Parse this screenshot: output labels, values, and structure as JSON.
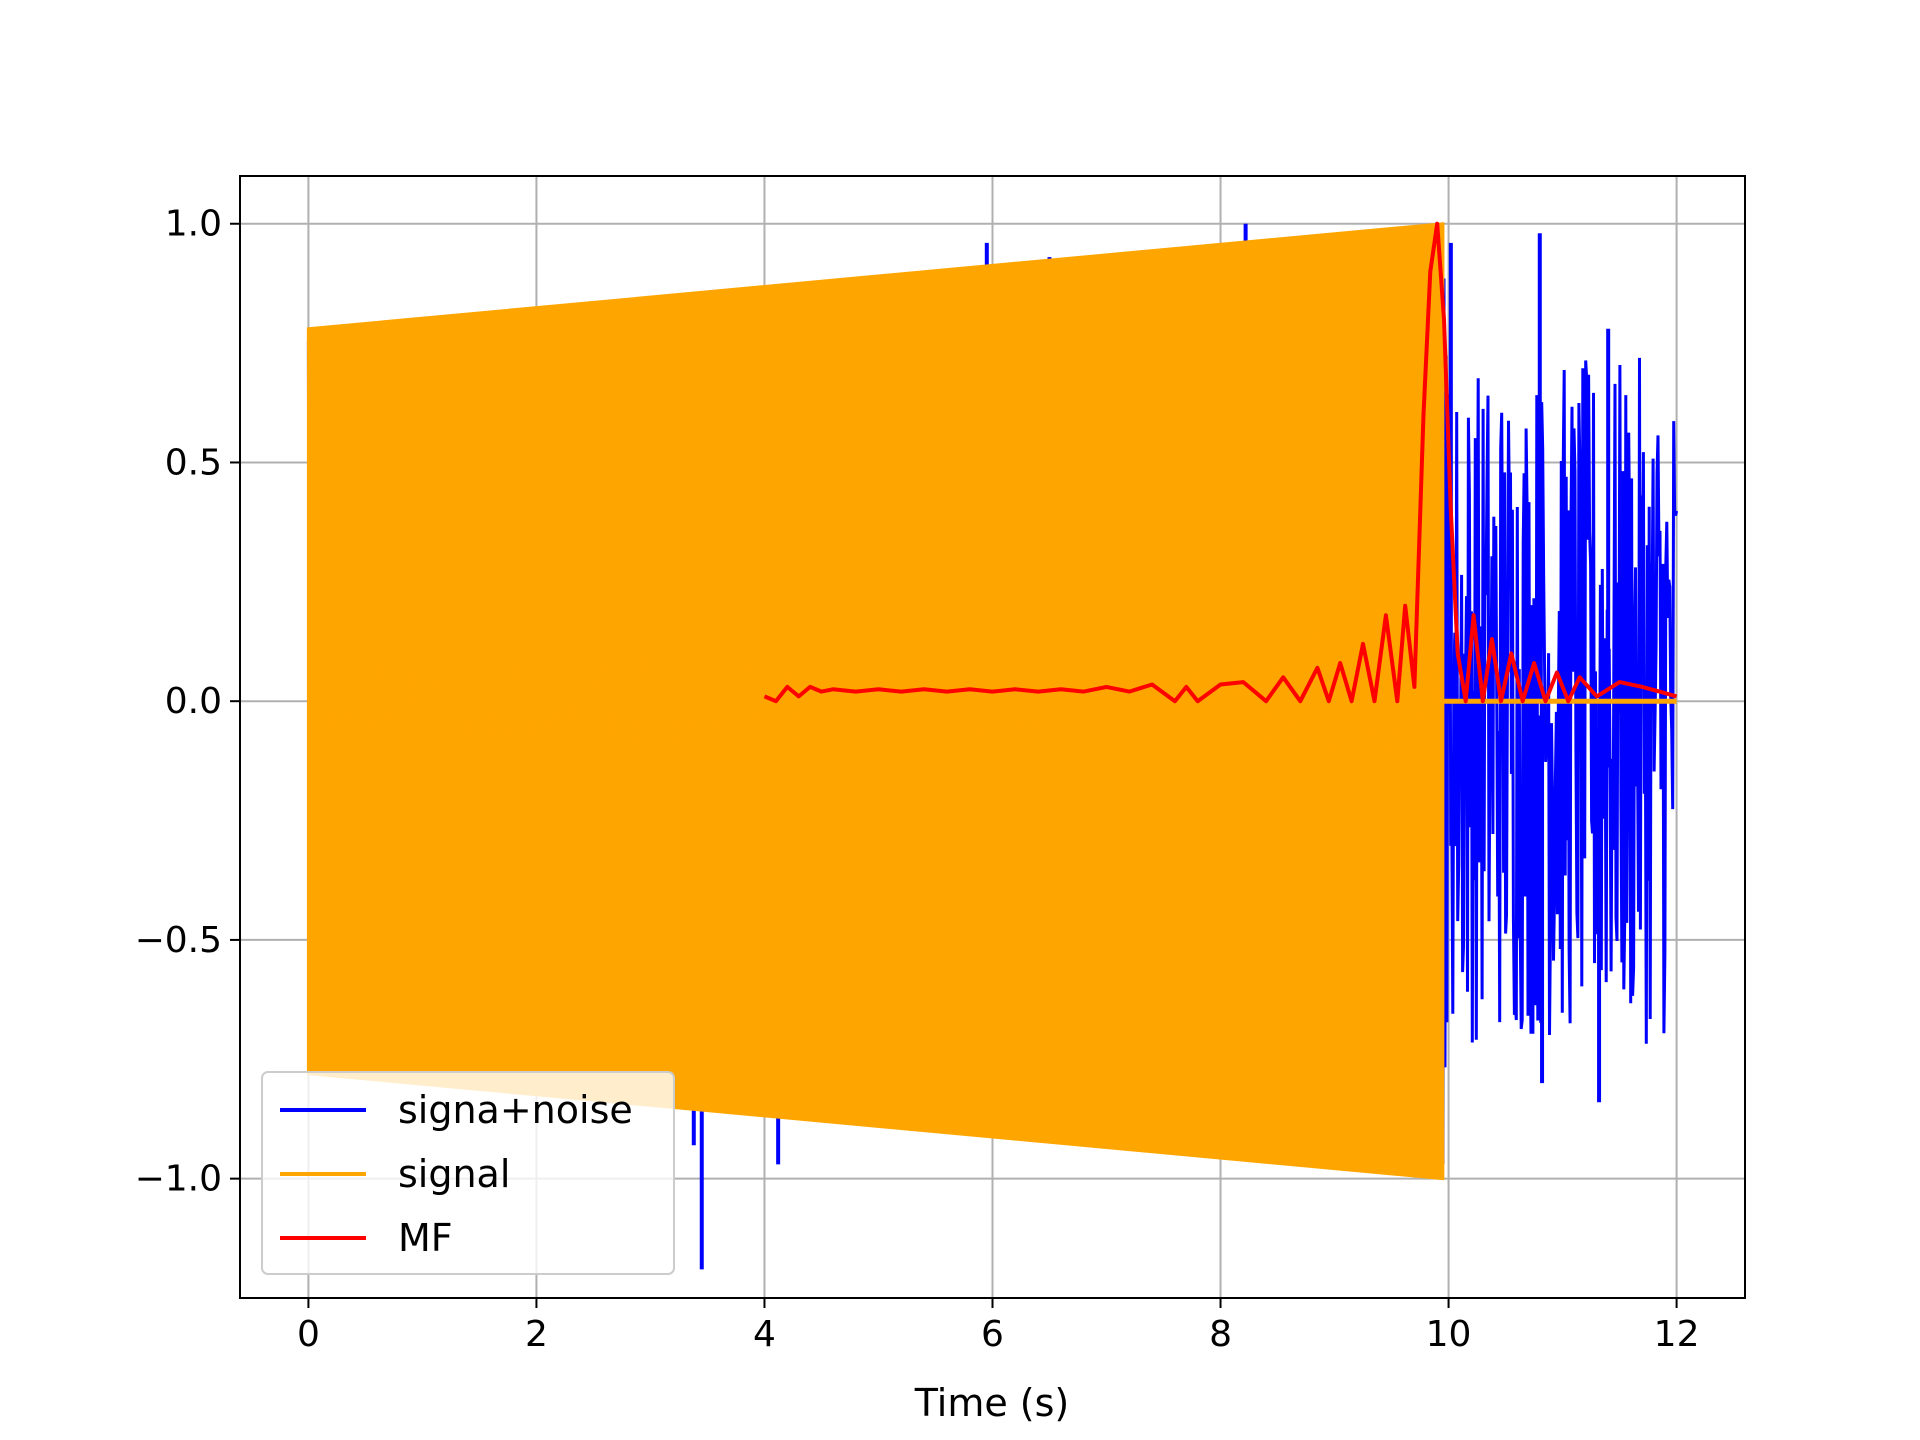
{
  "chart_data": {
    "type": "line",
    "title": "",
    "xlabel": "Time (s)",
    "ylabel": "",
    "xlim": [
      -0.6,
      12.6
    ],
    "ylim": [
      -1.25,
      1.1
    ],
    "grid": true,
    "legend_position": "lower-left",
    "x_ticks": [
      0,
      2,
      4,
      6,
      8,
      10,
      12
    ],
    "x_tick_labels": [
      "0",
      "2",
      "4",
      "6",
      "8",
      "10",
      "12"
    ],
    "y_ticks": [
      1.0,
      0.5,
      0.0,
      -0.5,
      -1.0
    ],
    "y_tick_labels": [
      "1.0",
      "0.5",
      "0.0",
      "−0.5",
      "−1.0"
    ],
    "series": [
      {
        "name": "signa+noise",
        "color": "#0000ff",
        "description": "received signal plus noise, 0 to 12 s",
        "envelope": {
          "x": [
            0,
            9.95,
            10,
            12
          ],
          "upper": [
            0.78,
            1.0,
            0.6,
            0.6
          ],
          "lower": [
            -0.78,
            -1.0,
            -0.6,
            -0.6
          ]
        },
        "spikes": [
          {
            "x": 3.45,
            "y": -1.19
          },
          {
            "x": 3.38,
            "y": -0.93
          },
          {
            "x": 4.12,
            "y": -0.97
          },
          {
            "x": 5.95,
            "y": 0.96
          },
          {
            "x": 6.5,
            "y": 0.93
          },
          {
            "x": 8.22,
            "y": 1.0
          },
          {
            "x": 10.02,
            "y": 0.96
          },
          {
            "x": 10.8,
            "y": 0.98
          },
          {
            "x": 11.32,
            "y": -0.84
          },
          {
            "x": 10.82,
            "y": -0.8
          },
          {
            "x": 11.4,
            "y": 0.78
          }
        ]
      },
      {
        "name": "signal",
        "color": "#ffa500",
        "description": "chirp with linearly rising amplitude from 0.78 at t=0 to 1.0 at t=9.95, then zero until t=12",
        "amplitude_start": 0.78,
        "amplitude_end": 1.0,
        "t_start": 0,
        "t_end": 9.95,
        "x_end": 12,
        "after_value": 0.0
      },
      {
        "name": "MF",
        "color": "#ff0000",
        "description": "matched filter output",
        "x": [
          4.0,
          4.1,
          4.2,
          4.3,
          4.4,
          4.5,
          4.6,
          4.8,
          5.0,
          5.2,
          5.4,
          5.6,
          5.8,
          6.0,
          6.2,
          6.4,
          6.6,
          6.8,
          7.0,
          7.2,
          7.4,
          7.6,
          7.7,
          7.8,
          8.0,
          8.2,
          8.4,
          8.55,
          8.7,
          8.85,
          8.95,
          9.05,
          9.15,
          9.25,
          9.35,
          9.45,
          9.55,
          9.62,
          9.7,
          9.78,
          9.84,
          9.9,
          9.96,
          10.02,
          10.08,
          10.15,
          10.22,
          10.3,
          10.38,
          10.46,
          10.55,
          10.65,
          10.75,
          10.85,
          10.95,
          11.05,
          11.15,
          11.3,
          11.5,
          11.7,
          11.85,
          12.0
        ],
        "y": [
          0.01,
          0.0,
          0.03,
          0.01,
          0.03,
          0.02,
          0.025,
          0.02,
          0.025,
          0.02,
          0.025,
          0.02,
          0.025,
          0.02,
          0.025,
          0.02,
          0.025,
          0.02,
          0.03,
          0.02,
          0.035,
          0.0,
          0.03,
          0.0,
          0.035,
          0.04,
          0.0,
          0.05,
          0.0,
          0.07,
          0.0,
          0.08,
          0.0,
          0.12,
          0.0,
          0.18,
          0.0,
          0.2,
          0.03,
          0.6,
          0.9,
          1.0,
          0.8,
          0.4,
          0.1,
          0.0,
          0.18,
          0.0,
          0.13,
          0.0,
          0.1,
          0.0,
          0.08,
          0.0,
          0.06,
          0.0,
          0.05,
          0.01,
          0.04,
          0.03,
          0.02,
          0.01
        ]
      }
    ]
  }
}
